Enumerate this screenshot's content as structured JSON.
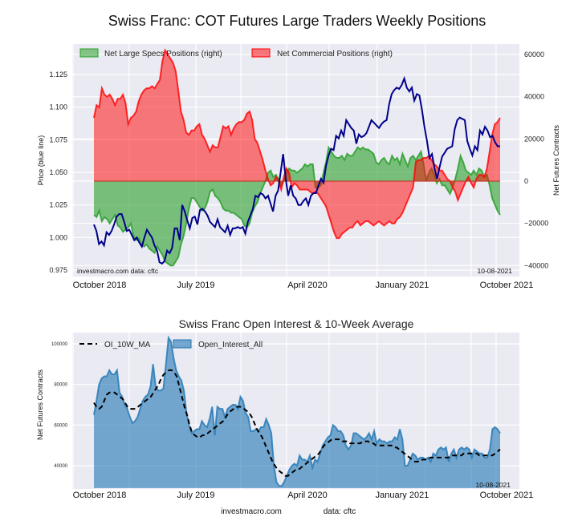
{
  "chart_data": [
    {
      "type": "line",
      "title": "Swiss Franc: COT Futures Large Traders Weekly Positions",
      "ylabel_left": "Price (blue line)",
      "ylabel_right": "Net Futures Contracts",
      "ylim_left": [
        0.97,
        1.145
      ],
      "ylim_right": [
        -45000,
        65000
      ],
      "yticks_left": [
        "0.975",
        "1.000",
        "1.025",
        "1.050",
        "1.075",
        "1.100",
        "1.125"
      ],
      "yticks_right": [
        "60000",
        "40000",
        "20000",
        "0",
        "−20000",
        "−40000"
      ],
      "xticks": [
        "October 2018",
        "July 2019",
        "April 2020",
        "January 2021",
        "October 2021"
      ],
      "grid": true,
      "legend": "top-left",
      "annotations": {
        "source": "investmacro.com   data: cftc",
        "date": "10-08-2021"
      },
      "series": [
        {
          "name": "Net Large Specs Positions (right)",
          "kind": "area",
          "color": "#2ca02c",
          "values": [
            -16000,
            -17000,
            -14000,
            -19000,
            -17000,
            -18000,
            -20000,
            -18000,
            -16000,
            -21000,
            -22000,
            -24000,
            -23000,
            -22000,
            -20000,
            -26000,
            -28000,
            -27000,
            -30000,
            -31000,
            -30000,
            -32000,
            -33000,
            -34000,
            -31000,
            -33000,
            -35000,
            -38000,
            -39000,
            -40000,
            -40000,
            -38000,
            -36000,
            -30000,
            -26000,
            -20000,
            -13000,
            -8000,
            -8000,
            -10000,
            -12000,
            -14000,
            -13000,
            -10000,
            -5000,
            -4000,
            -7000,
            -8000,
            -10000,
            -13000,
            -14000,
            -14000,
            -15000,
            -15000,
            -16000,
            -17000,
            -18000,
            -21000,
            -22000,
            -20000,
            -15000,
            -12000,
            -10000,
            -6000,
            -3000,
            0,
            4000,
            5000,
            2000,
            3000,
            1000,
            -2000,
            0,
            4000,
            6000,
            5000,
            5000,
            4000,
            5000,
            6000,
            8000,
            7000,
            8000,
            8000,
            -3000,
            -3000,
            -2000,
            4000,
            9000,
            16000,
            14000,
            12000,
            11000,
            11000,
            12000,
            10000,
            13000,
            12000,
            12000,
            14000,
            16000,
            15000,
            16000,
            15000,
            15000,
            14000,
            13000,
            9000,
            8000,
            10000,
            11000,
            9000,
            8000,
            12000,
            10000,
            11000,
            8000,
            13000,
            10000,
            7000,
            11000,
            12000,
            10000,
            12000,
            14000,
            8000,
            0,
            4000,
            6000,
            3000,
            -1000,
            1000,
            -2000,
            -2000,
            -4000,
            -6000,
            -3000,
            1000,
            6000,
            12000,
            9000,
            5000,
            4000,
            3000,
            5000,
            3000,
            6000,
            5000,
            2000,
            3000,
            -2000,
            -8000,
            -11000,
            -14000,
            -16000
          ]
        },
        {
          "name": "Net Commercial Positions (right)",
          "kind": "area",
          "color": "#ff0000",
          "values": [
            30000,
            36000,
            35000,
            44000,
            41000,
            40000,
            41000,
            39000,
            36000,
            39000,
            39000,
            41000,
            37000,
            27000,
            30000,
            31000,
            33000,
            38000,
            41000,
            43000,
            44000,
            44000,
            45000,
            44000,
            46000,
            48000,
            57000,
            62000,
            60000,
            58000,
            56000,
            52000,
            43000,
            33000,
            29000,
            23000,
            22000,
            24000,
            24000,
            26000,
            27000,
            22000,
            20000,
            17000,
            14000,
            17000,
            16000,
            16000,
            21000,
            26000,
            25000,
            26000,
            22000,
            25000,
            27000,
            28000,
            28000,
            29000,
            32000,
            33000,
            29000,
            20000,
            18000,
            14000,
            10000,
            5000,
            1000,
            -2000,
            -1000,
            2000,
            0,
            -4000,
            2000,
            6000,
            4000,
            -3000,
            -1000,
            -2000,
            -4000,
            -4000,
            -4000,
            -4000,
            -5000,
            -6000,
            -5000,
            -6000,
            -8000,
            -10000,
            -12000,
            -16000,
            -20000,
            -24000,
            -27000,
            -27000,
            -25000,
            -24000,
            -23000,
            -22000,
            -22000,
            -20000,
            -19000,
            -21000,
            -20000,
            -19000,
            -19000,
            -20000,
            -21000,
            -20000,
            -19000,
            -20000,
            -21000,
            -20000,
            -19000,
            -20000,
            -20000,
            -18000,
            -17000,
            -15000,
            -12000,
            -9000,
            -6000,
            -3000,
            9000,
            10000,
            10000,
            11000,
            11000,
            12000,
            10000,
            8000,
            7000,
            5000,
            5000,
            3000,
            1000,
            0,
            -3000,
            -5000,
            -9000,
            -6000,
            -3000,
            0,
            2000,
            -1000,
            -3000,
            1000,
            3000,
            3000,
            2000,
            6000,
            14000,
            22000,
            27000,
            28000,
            30000
          ]
        },
        {
          "name": "Price (blue line)",
          "kind": "line",
          "color": "#00008b",
          "values": [
            1.01,
            1.005,
            0.995,
            0.997,
            0.994,
            1.004,
            1.002,
            1.005,
            1.01,
            1.016,
            1.018,
            1.018,
            1.012,
            1.005,
            1.006,
            1.002,
            0.998,
            1.0,
            0.996,
            0.993,
            1.0,
            1.006,
            1.003,
            1.0,
            0.994,
            0.99,
            0.981,
            0.98,
            0.982,
            0.99,
            0.988,
            0.992,
            1.007,
            1.007,
            0.998,
            1.025,
            1.02,
            1.013,
            1.007,
            1.015,
            1.016,
            1.01,
            1.021,
            1.022,
            1.02,
            1.017,
            1.012,
            1.01,
            1.008,
            1.014,
            1.008,
            1.006,
            1.004,
            1.009,
            1.002,
            1.007,
            1.007,
            1.008,
            1.007,
            1.008,
            1.003,
            1.012,
            1.017,
            1.022,
            1.032,
            1.031,
            1.034,
            1.033,
            1.03,
            1.032,
            1.026,
            1.02,
            1.032,
            1.036,
            1.05,
            1.064,
            1.045,
            1.032,
            1.04,
            1.032,
            1.03,
            1.025,
            1.025,
            1.028,
            1.03,
            1.025,
            1.032,
            1.034,
            1.034,
            1.04,
            1.045,
            1.042,
            1.055,
            1.063,
            1.068,
            1.067,
            1.078,
            1.076,
            1.082,
            1.078,
            1.09,
            1.087,
            1.084,
            1.082,
            1.072,
            1.079,
            1.077,
            1.078,
            1.08,
            1.085,
            1.09,
            1.088,
            1.086,
            1.084,
            1.087,
            1.089,
            1.09,
            1.102,
            1.11,
            1.113,
            1.115,
            1.114,
            1.117,
            1.122,
            1.115,
            1.112,
            1.115,
            1.105,
            1.11,
            1.109,
            1.098,
            1.085,
            1.074,
            1.061,
            1.064,
            1.053,
            1.045,
            1.054,
            1.062,
            1.065,
            1.068,
            1.069,
            1.07,
            1.083,
            1.09,
            1.092,
            1.091,
            1.09,
            1.074,
            1.068,
            1.063,
            1.07,
            1.067,
            1.082,
            1.079,
            1.085,
            1.082,
            1.077,
            1.078,
            1.073,
            1.07,
            1.07
          ]
        }
      ]
    },
    {
      "type": "area",
      "title": "Swiss Franc Open Interest & 10-Week Average",
      "ylabel": "Net Futures Contracts",
      "ylim": [
        29000,
        104000
      ],
      "yticks": [
        "100000",
        "80000",
        "60000",
        "40000"
      ],
      "xticks": [
        "October 2018",
        "July 2019",
        "April 2020",
        "January 2021",
        "October 2021"
      ],
      "grid": true,
      "legend": "top-left",
      "annotations": {
        "date": "10-08-2021"
      },
      "series": [
        {
          "name": "Open_Interest_All",
          "kind": "area",
          "color": "#1f77b4",
          "values": [
            65000,
            72000,
            80000,
            83000,
            84000,
            84000,
            87000,
            85000,
            85000,
            87000,
            76000,
            74000,
            70000,
            68000,
            64000,
            61000,
            62000,
            64000,
            68000,
            72000,
            74000,
            75000,
            79000,
            90000,
            79000,
            77000,
            77000,
            78000,
            90000,
            103000,
            101000,
            93000,
            87000,
            84000,
            82000,
            77000,
            66000,
            60000,
            56000,
            57000,
            58000,
            58000,
            62000,
            60000,
            59000,
            63000,
            69000,
            55000,
            69000,
            68000,
            68000,
            64000,
            68000,
            69000,
            70000,
            70000,
            68000,
            74000,
            72000,
            66000,
            64000,
            57000,
            57000,
            58000,
            57000,
            59000,
            59000,
            63000,
            60000,
            56000,
            40000,
            32000,
            30000,
            30000,
            32000,
            35000,
            38000,
            40000,
            41000,
            40000,
            45000,
            43000,
            43000,
            42000,
            45000,
            39000,
            43000,
            42000,
            46000,
            50000,
            52000,
            54000,
            55000,
            60000,
            59000,
            57000,
            57000,
            55000,
            50000,
            48000,
            50000,
            56000,
            56000,
            55000,
            54000,
            53000,
            54000,
            56000,
            53000,
            57000,
            51000,
            53000,
            52000,
            52000,
            51000,
            52000,
            52000,
            54000,
            53000,
            58000,
            53000,
            40000,
            40000,
            43000,
            46000,
            45000,
            43000,
            44000,
            44000,
            43000,
            44000,
            42000,
            46000,
            45000,
            48000,
            49000,
            48000,
            49000,
            42000,
            46000,
            48000,
            44000,
            48000,
            49000,
            48000,
            49000,
            48000,
            44000,
            48000,
            47000,
            46000,
            46000,
            44000,
            44000,
            48000,
            58000,
            59000,
            58000,
            56000
          ]
        },
        {
          "name": "OI_10W_MA",
          "kind": "line",
          "style": "dashed",
          "color": "#000000",
          "values": [
            71000,
            69000,
            68000,
            69000,
            72000,
            75000,
            76000,
            76000,
            76000,
            75000,
            74000,
            73000,
            71000,
            69000,
            68000,
            68000,
            68000,
            69000,
            70000,
            71000,
            72000,
            73000,
            74000,
            76000,
            78000,
            80000,
            83000,
            85000,
            86000,
            87000,
            87000,
            86000,
            84000,
            79000,
            74000,
            69000,
            65000,
            60000,
            56000,
            55000,
            54000,
            54000,
            55000,
            55000,
            56000,
            57000,
            58000,
            59000,
            60000,
            61000,
            62000,
            64000,
            66000,
            67000,
            68000,
            69000,
            69000,
            69000,
            68000,
            67000,
            66000,
            64000,
            61000,
            58000,
            56000,
            54000,
            51000,
            48000,
            45000,
            42000,
            40000,
            38000,
            37000,
            36000,
            35000,
            35000,
            36000,
            37000,
            38000,
            38000,
            39000,
            40000,
            41000,
            42000,
            43000,
            44000,
            45000,
            46000,
            48000,
            50000,
            51000,
            52000,
            53000,
            53000,
            53000,
            53000,
            52000,
            52000,
            52000,
            51000,
            51000,
            51000,
            51000,
            51000,
            52000,
            52000,
            52000,
            51000,
            51000,
            50000,
            50000,
            50000,
            50000,
            50000,
            50000,
            50000,
            49000,
            49000,
            48000,
            47000,
            46000,
            45000,
            44000,
            43000,
            42000,
            42000,
            42000,
            43000,
            43000,
            43000,
            44000,
            44000,
            44000,
            44000,
            44000,
            44000,
            44000,
            44000,
            45000,
            45000,
            45000,
            45000,
            45000,
            46000,
            46000,
            46000,
            46000,
            46000,
            46000,
            45000,
            45000,
            45000,
            45000,
            45000,
            45000,
            46000,
            47000,
            48000
          ]
        }
      ]
    }
  ],
  "footer": {
    "site": "investmacro.com",
    "data": "data: cftc"
  }
}
